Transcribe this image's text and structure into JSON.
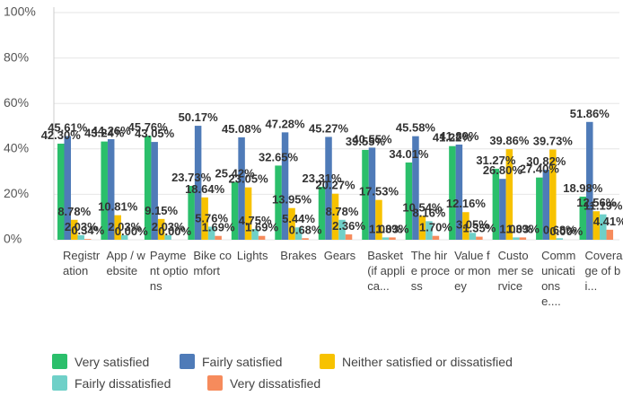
{
  "chart_data": {
    "type": "bar",
    "categories": [
      "Registration",
      "App / website",
      "Payment options",
      "Bike comfort",
      "Lights",
      "Brakes",
      "Gears",
      "Basket (if applica...",
      "The hire process",
      "Value for money",
      "Customer service",
      "Communications e....",
      "Coverage of bi..."
    ],
    "series": [
      {
        "name": "Very satisfied",
        "color": "#2bbf6b",
        "values": [
          42.3,
          43.24,
          45.76,
          23.73,
          25.42,
          32.65,
          23.31,
          39.55,
          34.01,
          41.22,
          31.27,
          27.4,
          18.98
        ],
        "value_labels": [
          "42.30%",
          "43.24%",
          "45.76%",
          "23.73%",
          "25.42%",
          "32.65%",
          "23.31%",
          "39.55%",
          "34.01%",
          "41.22%",
          "31.27%",
          "27.40%",
          "18.98%"
        ]
      },
      {
        "name": "Fairly satisfied",
        "color": "#4f7bb8",
        "values": [
          45.61,
          44.26,
          43.05,
          50.17,
          45.08,
          47.28,
          45.27,
          40.55,
          45.58,
          41.89,
          26.8,
          30.82,
          51.86
        ],
        "value_labels": [
          "45.61%",
          "44.26%",
          "43.05%",
          "50.17%",
          "45.08%",
          "47.28%",
          "45.27%",
          "40.55%",
          "45.58%",
          "41.89%",
          "26.80%",
          "30.82%",
          "51.86%"
        ]
      },
      {
        "name": "Neither satisfied or dissatisfied",
        "color": "#f7c200",
        "values": [
          8.78,
          10.81,
          9.15,
          18.64,
          23.05,
          13.95,
          20.27,
          17.53,
          10.54,
          12.16,
          39.86,
          39.73,
          12.56
        ],
        "value_labels": [
          "8.78%",
          "10.81%",
          "9.15%",
          "18.64%",
          "23.05%",
          "13.95%",
          "20.27%",
          "17.53%",
          "10.54%",
          "12.16%",
          "39.86%",
          "39.73%",
          "12.56%"
        ]
      },
      {
        "name": "Fairly dissatisfied",
        "color": "#6fd0c8",
        "values": [
          2.03,
          2.03,
          2.03,
          5.76,
          4.75,
          5.44,
          8.78,
          1.03,
          8.16,
          3.05,
          1.03,
          0.68,
          11.19
        ],
        "value_labels": [
          "2.03%",
          "2.03%",
          "2.03%",
          "5.76%",
          "4.75%",
          "5.44%",
          "8.78%",
          "1.03%",
          "8.16%",
          "3.05%",
          "1.03%",
          "0.68%",
          "11.19%"
        ]
      },
      {
        "name": "Very dissatisfied",
        "color": "#f68b5c",
        "values": [
          0.34,
          0,
          0,
          1.69,
          1.69,
          0.68,
          2.36,
          1.03,
          1.7,
          1.35,
          1.03,
          0,
          4.41
        ],
        "value_labels": [
          "0.34%",
          "0.00%",
          "0.00%",
          "1.69%",
          "1.69%",
          "0.68%",
          "2.36%",
          "1.03%",
          "1.70%",
          "1.35%",
          "1.03%",
          "0.00%",
          "4.41%"
        ]
      }
    ],
    "ylim": [
      0,
      100
    ],
    "yticks": [
      {
        "value": 0,
        "label": "0%"
      },
      {
        "value": 20,
        "label": "20%"
      },
      {
        "value": 40,
        "label": "40%"
      },
      {
        "value": 60,
        "label": "60%"
      },
      {
        "value": 80,
        "label": "80%"
      },
      {
        "value": 100,
        "label": "100%"
      }
    ],
    "grid": true
  }
}
